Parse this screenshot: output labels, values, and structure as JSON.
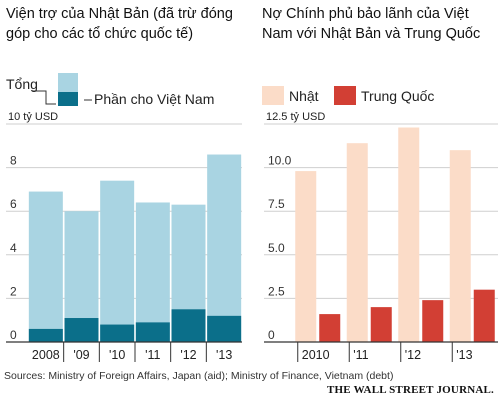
{
  "chart_data": [
    {
      "type": "bar",
      "stacked": true,
      "title": "Viện trợ của Nhật Bản (đã trừ đóng góp cho các tổ chức quốc tế)",
      "unit_label": "10 tỷ USD",
      "categories": [
        "2008",
        "'09",
        "'10",
        "'11",
        "'12",
        "'13"
      ],
      "series": [
        {
          "name": "Phần cho Việt Nam",
          "color": "#0b6f8a",
          "values": [
            0.6,
            1.1,
            0.8,
            0.9,
            1.5,
            1.2
          ]
        },
        {
          "name": "Tổng",
          "color": "#a9d4e2",
          "values": [
            6.9,
            6.0,
            7.4,
            6.4,
            6.3,
            8.6
          ]
        }
      ],
      "yticks": [
        "0",
        "2",
        "4",
        "6",
        "8"
      ],
      "ylim": [
        0,
        10
      ],
      "grid": true
    },
    {
      "type": "bar",
      "title": "Nợ Chính phủ bảo lãnh của Việt Nam với Nhật Bản và Trung Quốc",
      "unit_label": "12.5 tỷ USD",
      "categories": [
        "2010",
        "'11",
        "'12",
        "'13"
      ],
      "series": [
        {
          "name": "Nhật",
          "color": "#fbdcc8",
          "values": [
            9.8,
            11.4,
            12.3,
            11.0
          ]
        },
        {
          "name": "Trung Quốc",
          "color": "#d23f34",
          "values": [
            1.6,
            2.0,
            2.4,
            3.0
          ]
        }
      ],
      "yticks": [
        "0",
        "2.5",
        "5.0",
        "7.5",
        "10.0"
      ],
      "ylim": [
        0,
        12.5
      ],
      "grid": true
    }
  ],
  "footer": {
    "sources": "Sources: Ministry of Foreign Affairs, Japan (aid); Ministry of Finance, Vietnam (debt)",
    "brand": "THE WALL STREET JOURNAL."
  }
}
